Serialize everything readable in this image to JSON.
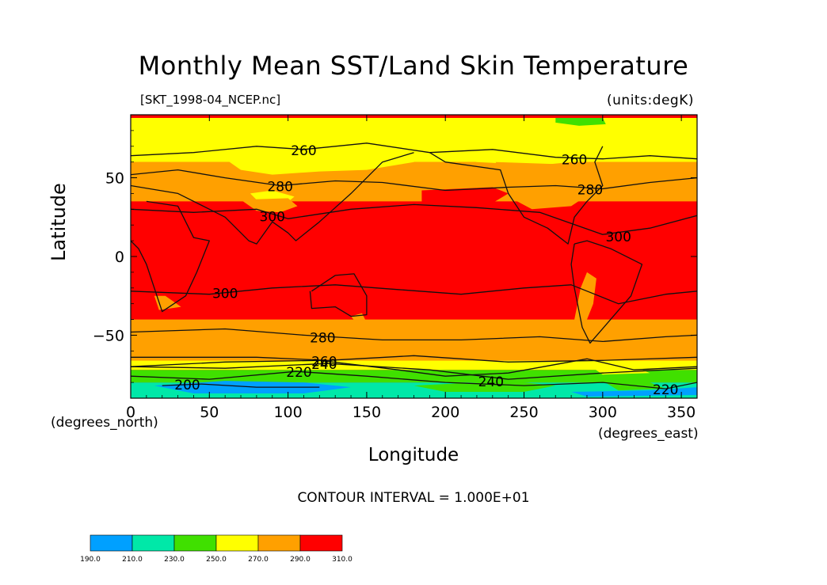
{
  "chart_data": {
    "type": "heatmap",
    "title": "Monthly Mean SST/Land Skin Temperature",
    "subtitle_left": "[SKT_1998-04_NCEP.nc]",
    "subtitle_right": "(units:degK)",
    "xlabel": "Longitude",
    "ylabel": "Latitude",
    "x_unit_label": "(degrees_east)",
    "y_unit_label": "(degrees_north)",
    "xlim": [
      0,
      360
    ],
    "ylim": [
      -90,
      90
    ],
    "x_ticks": [
      0,
      50,
      100,
      150,
      200,
      250,
      300,
      350
    ],
    "y_ticks": [
      -50,
      0,
      50
    ],
    "contour_interval_text": "CONTOUR INTERVAL = 1.000E+01",
    "colorbar": {
      "levels": [
        190.0,
        210.0,
        230.0,
        250.0,
        270.0,
        290.0,
        310.0
      ],
      "labels": [
        "190.0",
        "210.0",
        "230.0",
        "250.0",
        "270.0",
        "290.0",
        "310.0"
      ],
      "colors": [
        "#00a0ff",
        "#00e8a8",
        "#40e000",
        "#ffff00",
        "#ffa000",
        "#ff0000"
      ]
    },
    "temperature_bands": [
      {
        "lat_range": [
          -90,
          -80
        ],
        "value": 220
      },
      {
        "lat_range": [
          -80,
          -72
        ],
        "value": 240
      },
      {
        "lat_range": [
          -72,
          -66
        ],
        "value": 260
      },
      {
        "lat_range": [
          -66,
          -40
        ],
        "value": 280
      },
      {
        "lat_range": [
          -40,
          35
        ],
        "value": 300
      },
      {
        "lat_range": [
          35,
          60
        ],
        "value": 280
      },
      {
        "lat_range": [
          60,
          88
        ],
        "value": 260
      }
    ],
    "contour_labels": [
      {
        "text": "260",
        "lon": 110,
        "lat": 68
      },
      {
        "text": "260",
        "lon": 282,
        "lat": 62
      },
      {
        "text": "280",
        "lon": 95,
        "lat": 45
      },
      {
        "text": "280",
        "lon": 292,
        "lat": 43
      },
      {
        "text": "300",
        "lon": 90,
        "lat": 26
      },
      {
        "text": "300",
        "lon": 310,
        "lat": 13
      },
      {
        "text": "300",
        "lon": 60,
        "lat": -23
      },
      {
        "text": "280",
        "lon": 122,
        "lat": -51
      },
      {
        "text": "260",
        "lon": 123,
        "lat": -66
      },
      {
        "text": "240",
        "lon": 123,
        "lat": -68
      },
      {
        "text": "220",
        "lon": 107,
        "lat": -73
      },
      {
        "text": "240",
        "lon": 229,
        "lat": -79
      },
      {
        "text": "200",
        "lon": 36,
        "lat": -81
      },
      {
        "text": "220",
        "lon": 340,
        "lat": -84
      }
    ]
  }
}
